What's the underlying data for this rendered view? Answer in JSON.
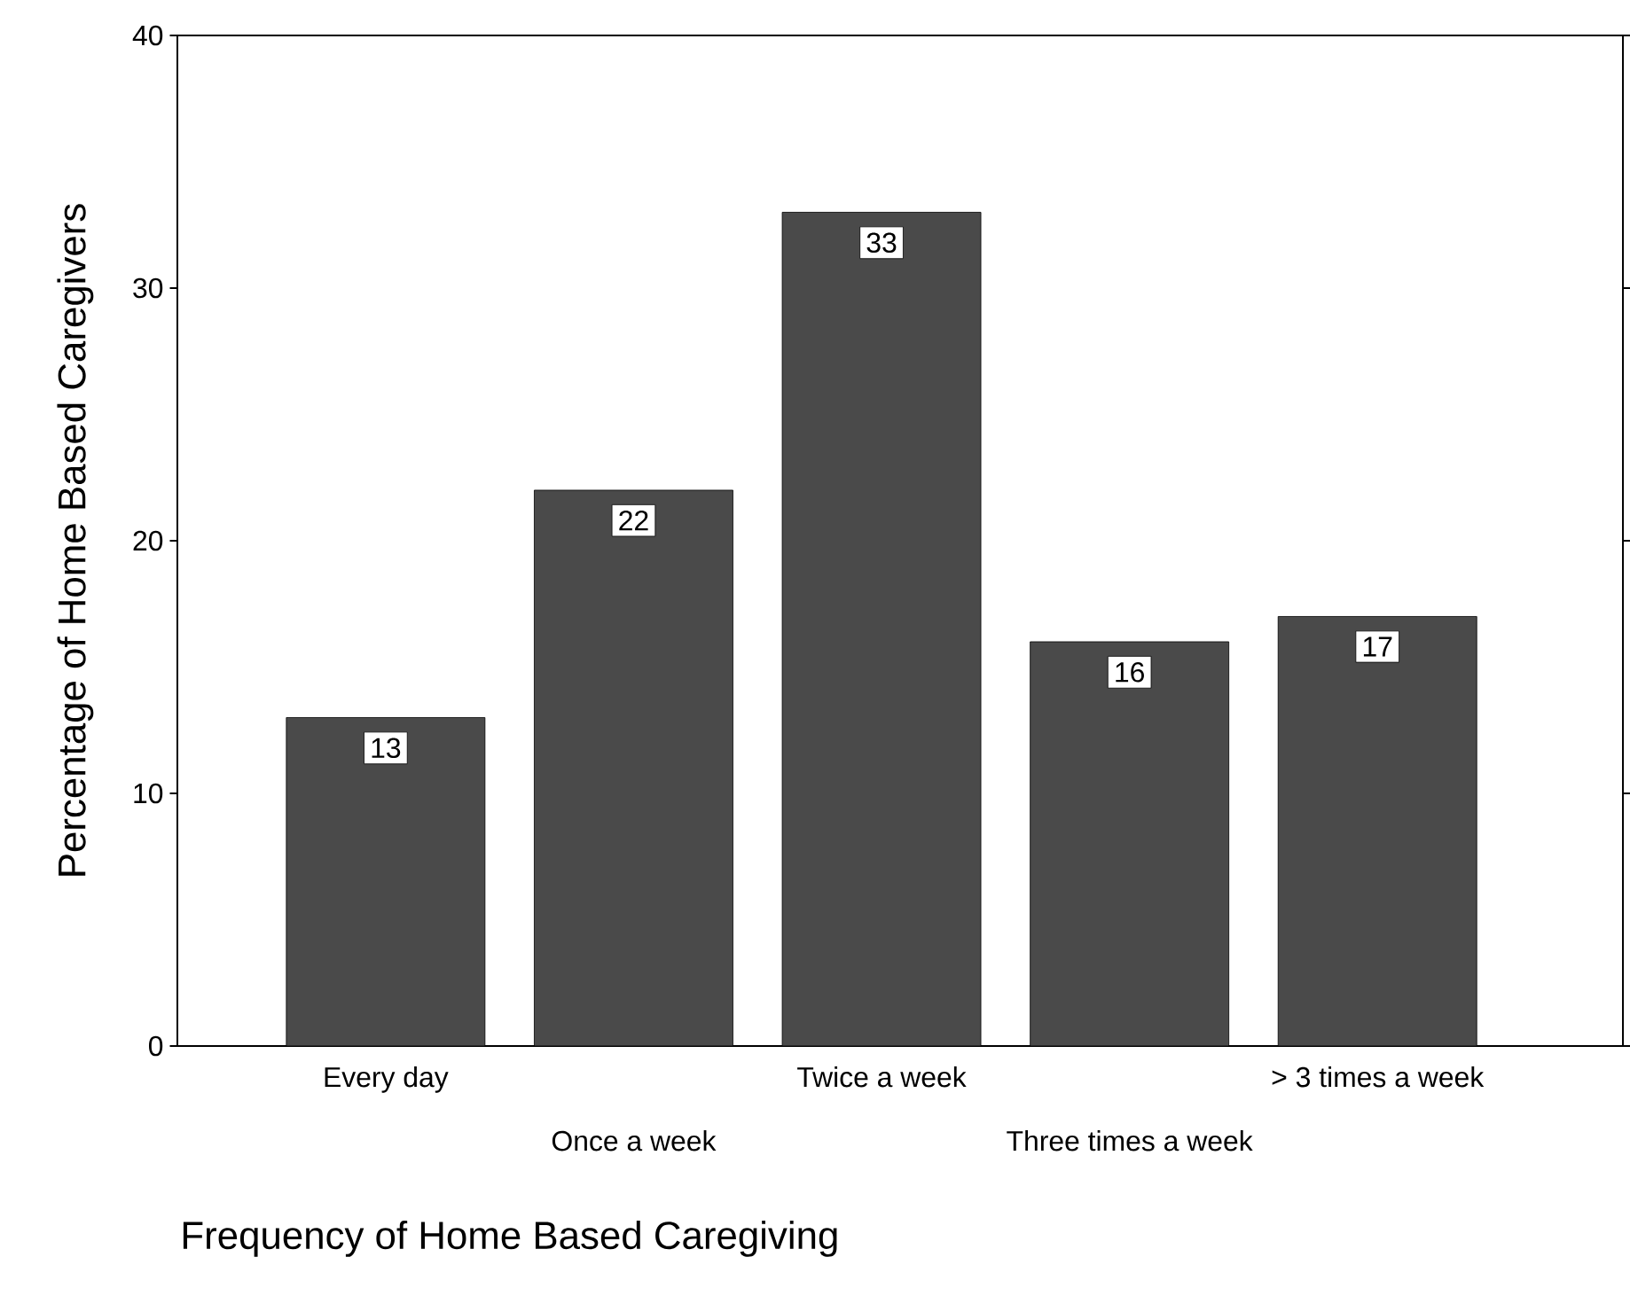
{
  "chart_data": {
    "type": "bar",
    "xlabel": "Frequency of Home Based Caregiving",
    "ylabel": "Percentage of Home Based Caregivers",
    "categories": [
      "Every day",
      "Once a week",
      "Twice a week",
      "Three times a week",
      "> 3 times a week"
    ],
    "values": [
      13,
      22,
      33,
      16,
      17
    ],
    "color": "#4a4a4a",
    "data_labels": true,
    "ylim": [
      0,
      40
    ],
    "yticks": [
      0,
      10,
      20,
      30,
      40
    ],
    "grid": false
  }
}
